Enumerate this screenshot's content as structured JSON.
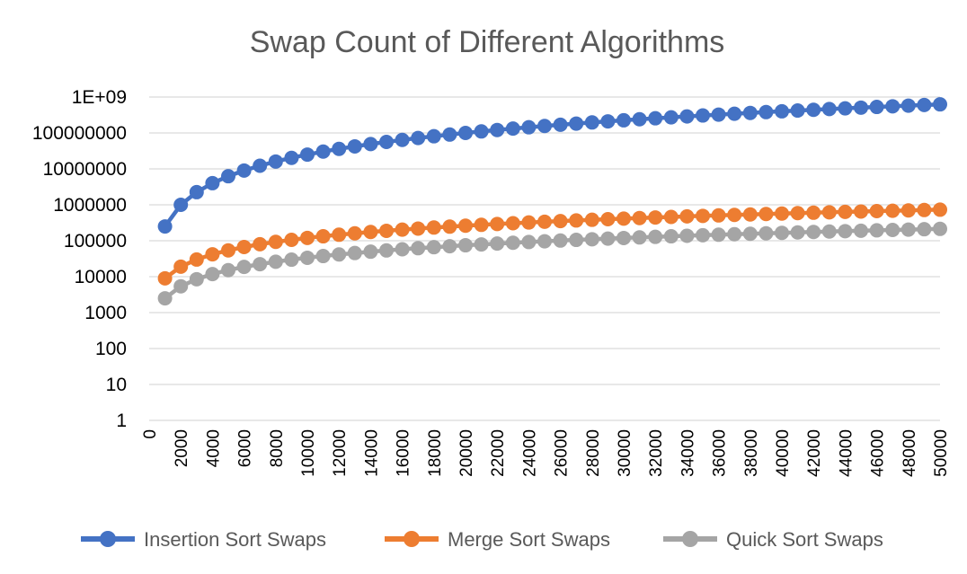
{
  "chart_data": {
    "type": "line",
    "title": "Swap Count of Different Algorithms",
    "y_scale": "log10",
    "ylim": [
      1,
      1000000000
    ],
    "y_tick_values": [
      1,
      10,
      100,
      1000,
      10000,
      100000,
      1000000,
      10000000,
      100000000,
      1000000000
    ],
    "y_tick_labels": [
      "1",
      "10",
      "100",
      "1000",
      "10000",
      "100000",
      "1000000",
      "10000000",
      "100000000",
      "1E+09"
    ],
    "xlim": [
      0,
      50000
    ],
    "x_tick_labels": [
      "0",
      "2000",
      "4000",
      "6000",
      "8000",
      "10000",
      "12000",
      "14000",
      "16000",
      "18000",
      "20000",
      "22000",
      "24000",
      "26000",
      "28000",
      "30000",
      "32000",
      "34000",
      "36000",
      "38000",
      "40000",
      "42000",
      "44000",
      "46000",
      "48000",
      "50000"
    ],
    "grid": true,
    "legend": "bottom",
    "x": [
      1000,
      2000,
      3000,
      4000,
      5000,
      6000,
      7000,
      8000,
      9000,
      10000,
      11000,
      12000,
      13000,
      14000,
      15000,
      16000,
      17000,
      18000,
      19000,
      20000,
      21000,
      22000,
      23000,
      24000,
      25000,
      26000,
      27000,
      28000,
      29000,
      30000,
      31000,
      32000,
      33000,
      34000,
      35000,
      36000,
      37000,
      38000,
      39000,
      40000,
      41000,
      42000,
      43000,
      44000,
      45000,
      46000,
      47000,
      48000,
      49000,
      50000
    ],
    "series": [
      {
        "name": "Insertion Sort Swaps",
        "color": "#4472c4",
        "values": [
          250000,
          1000000,
          2250000,
          4000000,
          6250000,
          9000000,
          12250000,
          16000000,
          20250000,
          25000000,
          30250000,
          36000000,
          42250000,
          49000000,
          56250000,
          64000000,
          72250000,
          81000000,
          90250000,
          100000000,
          110250000,
          121000000,
          132250000,
          144000000,
          156250000,
          169000000,
          182250000,
          196000000,
          210250000,
          225000000,
          240250000,
          256000000,
          272250000,
          289000000,
          306250000,
          324000000,
          342250000,
          361000000,
          380250000,
          400000000,
          420250000,
          441000000,
          462250000,
          484000000,
          506250000,
          529000000,
          552250000,
          576000000,
          600250000,
          625000000
        ]
      },
      {
        "name": "Merge Sort Swaps",
        "color": "#ed7d31",
        "values": [
          9000,
          19000,
          30000,
          42000,
          54000,
          67000,
          80000,
          93000,
          106000,
          120000,
          133000,
          147000,
          161000,
          175000,
          189000,
          204000,
          218000,
          233000,
          247000,
          262000,
          277000,
          292000,
          307000,
          322000,
          337000,
          352000,
          367000,
          383000,
          398000,
          413000,
          429000,
          445000,
          460000,
          476000,
          492000,
          507000,
          523000,
          539000,
          555000,
          571000,
          587000,
          603000,
          619000,
          635000,
          651000,
          668000,
          684000,
          700000,
          716000,
          732000
        ]
      },
      {
        "name": "Quick Sort Swaps",
        "color": "#a5a5a5",
        "values": [
          2500,
          5400,
          8500,
          11800,
          15200,
          18700,
          22300,
          26000,
          29800,
          33600,
          37500,
          41500,
          45500,
          49600,
          53700,
          57800,
          62000,
          66200,
          70500,
          74800,
          79100,
          83400,
          87800,
          92200,
          96700,
          101100,
          105600,
          110100,
          114700,
          119200,
          123800,
          128400,
          133000,
          137700,
          142300,
          147000,
          151700,
          156400,
          161100,
          165900,
          170600,
          175400,
          180200,
          185000,
          189800,
          194600,
          199500,
          204300,
          209200,
          214000
        ]
      }
    ]
  }
}
